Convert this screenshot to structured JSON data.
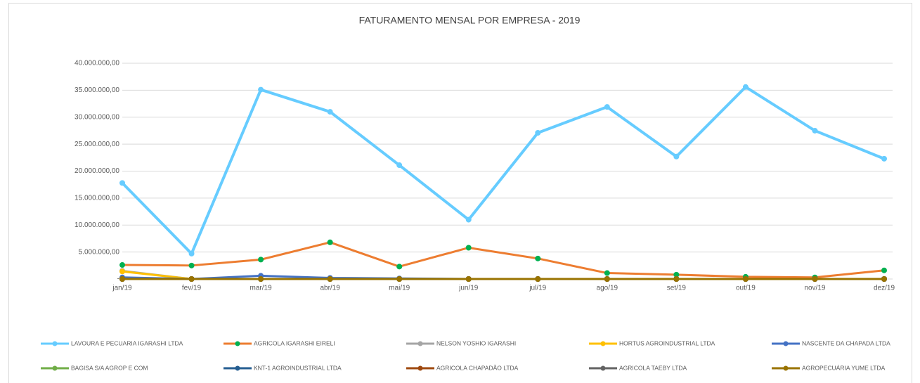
{
  "chart_data": {
    "type": "line",
    "title": "FATURAMENTO MENSAL POR EMPRESA - 2019",
    "categories": [
      "jan/19",
      "fev/19",
      "mar/19",
      "abr/19",
      "mai/19",
      "jun/19",
      "jul/19",
      "ago/19",
      "set/19",
      "out/19",
      "nov/19",
      "dez/19"
    ],
    "ylim": [
      0,
      40000000
    ],
    "yticks": [
      {
        "value": 0,
        "label": "-"
      },
      {
        "value": 5000000,
        "label": "5.000.000,00"
      },
      {
        "value": 10000000,
        "label": "10.000.000,00"
      },
      {
        "value": 15000000,
        "label": "15.000.000,00"
      },
      {
        "value": 20000000,
        "label": "20.000.000,00"
      },
      {
        "value": 25000000,
        "label": "25.000.000,00"
      },
      {
        "value": 30000000,
        "label": "30.000.000,00"
      },
      {
        "value": 35000000,
        "label": "35.000.000,00"
      },
      {
        "value": 40000000,
        "label": "40.000.000,00"
      }
    ],
    "grid": true,
    "legend": "bottom",
    "series": [
      {
        "name": "LAVOURA E PECUARIA IGARASHI LTDA",
        "color": "#66ccff",
        "marker_color": "#66ccff",
        "values": [
          17800000,
          4700000,
          35100000,
          31000000,
          21100000,
          11000000,
          27100000,
          31900000,
          22700000,
          35600000,
          27500000,
          22300000
        ]
      },
      {
        "name": "AGRICOLA IGARASHI EIRELI",
        "color": "#ed7d31",
        "marker_color": "#00b050",
        "values": [
          2600000,
          2500000,
          3600000,
          6800000,
          2300000,
          5800000,
          3800000,
          1100000,
          800000,
          400000,
          300000,
          1600000
        ]
      },
      {
        "name": "NELSON YOSHIO IGARASHI",
        "color": "#a5a5a5",
        "marker_color": "#a5a5a5",
        "values": [
          1500000,
          0,
          0,
          0,
          0,
          0,
          0,
          0,
          0,
          0,
          0,
          0
        ]
      },
      {
        "name": "HORTUS AGROINDUSTRIAL LTDA",
        "color": "#ffc000",
        "marker_color": "#ffc000",
        "values": [
          1400000,
          0,
          0,
          0,
          0,
          0,
          0,
          0,
          0,
          0,
          0,
          0
        ]
      },
      {
        "name": "NASCENTE DA CHAPADA LTDA",
        "color": "#4472c4",
        "marker_color": "#4472c4",
        "values": [
          300000,
          0,
          600000,
          200000,
          100000,
          0,
          0,
          0,
          0,
          0,
          0,
          0
        ]
      },
      {
        "name": "BAGISA S/A AGROP E COM",
        "color": "#70ad47",
        "marker_color": "#70ad47",
        "values": [
          0,
          0,
          0,
          0,
          0,
          0,
          0,
          0,
          0,
          0,
          0,
          0
        ]
      },
      {
        "name": "KNT-1 AGROINDUSTRIAL LTDA",
        "color": "#255e91",
        "marker_color": "#255e91",
        "values": [
          0,
          0,
          0,
          0,
          0,
          0,
          0,
          0,
          0,
          0,
          0,
          0
        ]
      },
      {
        "name": "AGRICOLA CHAPADÃO LTDA",
        "color": "#9e480e",
        "marker_color": "#9e480e",
        "values": [
          0,
          0,
          0,
          0,
          0,
          0,
          0,
          0,
          0,
          0,
          0,
          0
        ]
      },
      {
        "name": "AGRICOLA TAEBY LTDA",
        "color": "#636363",
        "marker_color": "#636363",
        "values": [
          0,
          0,
          0,
          0,
          0,
          0,
          0,
          0,
          0,
          0,
          0,
          0
        ]
      },
      {
        "name": "AGROPECUÁRIA YUME LTDA",
        "color": "#997300",
        "marker_color": "#997300",
        "values": [
          0,
          0,
          0,
          0,
          0,
          0,
          0,
          0,
          0,
          0,
          0,
          0
        ]
      }
    ]
  }
}
